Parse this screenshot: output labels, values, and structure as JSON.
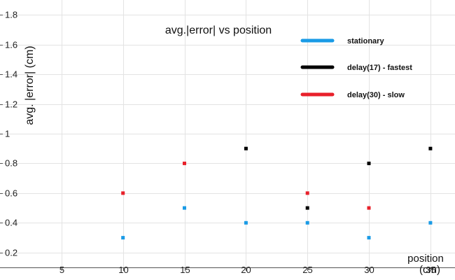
{
  "chart_data": {
    "type": "scatter",
    "title": "avg.|error| vs position",
    "xlabel": [
      "position",
      "(cm)"
    ],
    "ylabel": "avg.  |error| (cm)",
    "xlim": [
      0,
      37
    ],
    "ylim": [
      0.1,
      1.9
    ],
    "xticks": [
      5,
      10,
      15,
      20,
      25,
      30,
      35
    ],
    "xtick_labels": [
      "5",
      "10",
      "15",
      "20",
      "25",
      "30",
      "35"
    ],
    "yticks": [
      0.2,
      0.4,
      0.6,
      0.8,
      1.0,
      1.2,
      1.4,
      1.6,
      1.8
    ],
    "ytick_labels": [
      "0.2",
      "0.4",
      "0.6",
      "0.8",
      "1",
      "1.2",
      "1.4",
      "1.6",
      "1.8"
    ],
    "grid": true,
    "legend_position": "top-right",
    "series": [
      {
        "name": "stationary",
        "color": "#1a9be6",
        "x": [
          10,
          15,
          20,
          25,
          30,
          35
        ],
        "y": [
          0.3,
          0.5,
          0.4,
          0.4,
          0.3,
          0.4
        ]
      },
      {
        "name": "delay(17) - fastest",
        "color": "#000000",
        "x": [
          20,
          25,
          30,
          35
        ],
        "y": [
          0.9,
          0.5,
          0.8,
          0.9
        ]
      },
      {
        "name": "delay(30) - slow",
        "color": "#e8202a",
        "x": [
          10,
          15,
          25,
          30
        ],
        "y": [
          0.6,
          0.8,
          0.6,
          0.5
        ]
      }
    ]
  }
}
